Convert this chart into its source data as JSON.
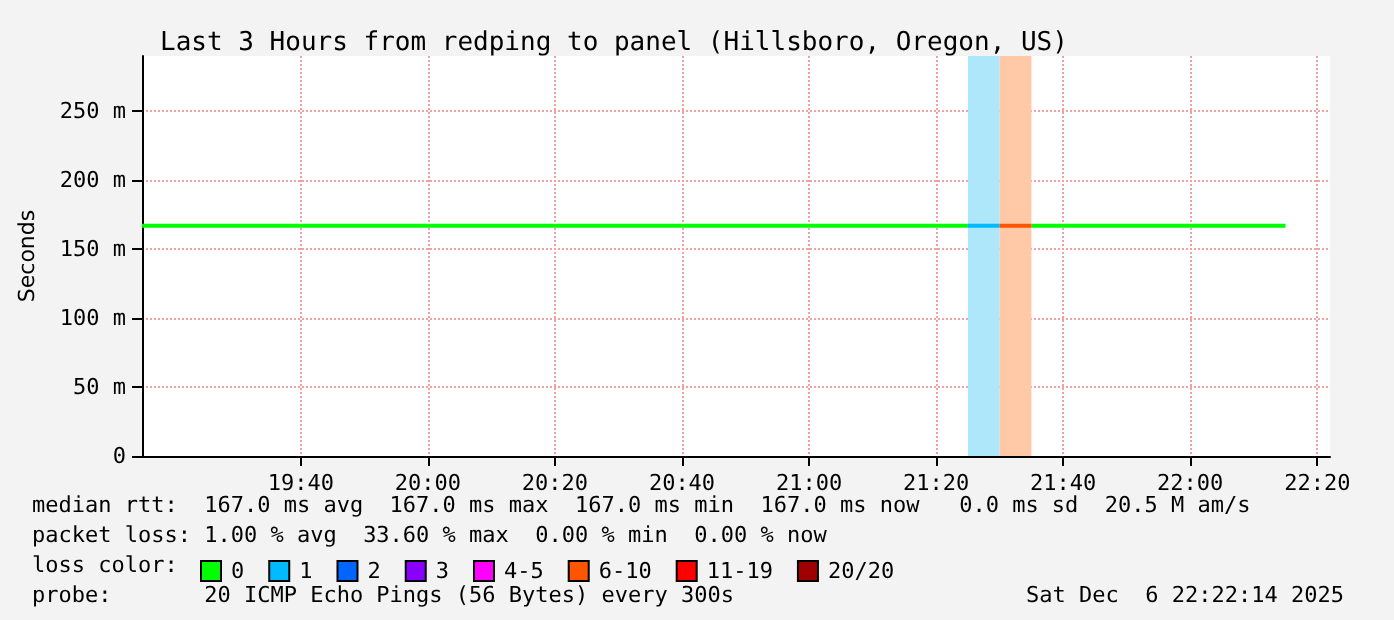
{
  "chart_data": {
    "type": "line",
    "title": "Last 3 Hours from redping to panel (Hillsboro, Oregon, US)",
    "ylabel": "Seconds",
    "xlim": [
      "2025-12-06T19:15",
      "2025-12-06T22:22"
    ],
    "xticks": [
      {
        "value": "2025-12-06T19:40",
        "label": "19:40"
      },
      {
        "value": "2025-12-06T20:00",
        "label": "20:00"
      },
      {
        "value": "2025-12-06T20:20",
        "label": "20:20"
      },
      {
        "value": "2025-12-06T20:40",
        "label": "20:40"
      },
      {
        "value": "2025-12-06T21:00",
        "label": "21:00"
      },
      {
        "value": "2025-12-06T21:20",
        "label": "21:20"
      },
      {
        "value": "2025-12-06T21:40",
        "label": "21:40"
      },
      {
        "value": "2025-12-06T22:00",
        "label": "22:00"
      },
      {
        "value": "2025-12-06T22:20",
        "label": "22:20"
      }
    ],
    "ylim": [
      0,
      290
    ],
    "yticks": [
      0,
      {
        "value": 50,
        "label": "50 m"
      },
      {
        "value": 100,
        "label": "100 m"
      },
      {
        "value": 150,
        "label": "150 m"
      },
      {
        "value": 200,
        "label": "200 m"
      },
      {
        "value": 250,
        "label": "250 m"
      }
    ],
    "grid": true,
    "marker": "none",
    "line_style": "solid",
    "legend": "bottom left",
    "series": [
      {
        "name": "0",
        "color": "#00ff00",
        "x": [
          "2025-12-06T19:15",
          "2025-12-06T21:25",
          "2025-12-06T21:30",
          "2025-12-06T21:35",
          "2025-12-06T22:15"
        ],
        "values": [
          167,
          167,
          null,
          167,
          167
        ]
      },
      {
        "name": "1",
        "color": "#00bbff",
        "x": [
          "2025-12-06T21:25",
          "2025-12-06T21:30"
        ],
        "values": [
          167,
          167
        ]
      },
      {
        "name": "2",
        "color": "#0066ff"
      },
      {
        "name": "3",
        "color": "#8a00ff"
      },
      {
        "name": "4-5",
        "color": "#ff00ff"
      },
      {
        "name": "6-10",
        "color": "#ff5500",
        "x": [
          "2025-12-06T21:30",
          "2025-12-06T21:35"
        ],
        "values": [
          167,
          167
        ]
      },
      {
        "name": "11-19",
        "color": "#ff0000"
      },
      {
        "name": "20/20",
        "color": "#a10000"
      }
    ],
    "bands": [
      {
        "axis": "x",
        "from": "2025-12-06T21:25",
        "to": "2025-12-06T21:30",
        "color": "#aee6fa"
      },
      {
        "axis": "x",
        "from": "2025-12-06T21:30",
        "to": "2025-12-06T21:35",
        "color": "#ffc8a6"
      }
    ],
    "annotations": [
      "median rtt:  167.0 ms avg  167.0 ms max  167.0 ms min  167.0 ms now   0.0 ms sd  20.5 M am/s",
      "packet loss: 1.00 % avg  33.60 % max  0.00 % min  0.00 % now",
      "loss color:",
      "probe:       20 ICMP Echo Pings (56 Bytes) every 300s",
      "Sat Dec  6 22:22:14 2025"
    ]
  }
}
